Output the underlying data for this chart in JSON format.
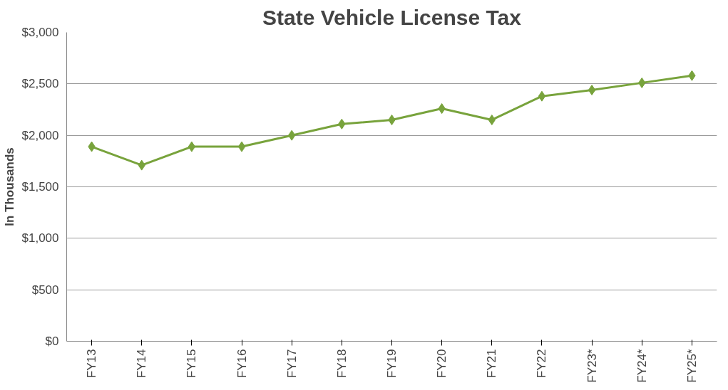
{
  "chart_data": {
    "type": "line",
    "title": "State Vehicle License Tax",
    "ylabel": "In Thousands",
    "categories": [
      "FY13",
      "FY14",
      "FY15",
      "FY16",
      "FY17",
      "FY18",
      "FY19",
      "FY20",
      "FY21",
      "FY22",
      "FY23*",
      "FY24*",
      "FY25*"
    ],
    "series": [
      {
        "color": "#78a33c",
        "values": [
          1890,
          1710,
          1890,
          1890,
          2000,
          2110,
          2150,
          2260,
          2150,
          2380,
          2440,
          2510,
          2580
        ]
      }
    ],
    "ylim": [
      0,
      3000
    ],
    "yticks": [
      {
        "value": 0,
        "label": "$0"
      },
      {
        "value": 500,
        "label": "$500"
      },
      {
        "value": 1000,
        "label": "$1,000"
      },
      {
        "value": 1500,
        "label": "$1,500"
      },
      {
        "value": 2000,
        "label": "$2,000"
      },
      {
        "value": 2500,
        "label": "$2,500"
      },
      {
        "value": 3000,
        "label": "$3,000"
      }
    ],
    "grid": "y",
    "marker": "diamond",
    "line_style": "solid"
  }
}
